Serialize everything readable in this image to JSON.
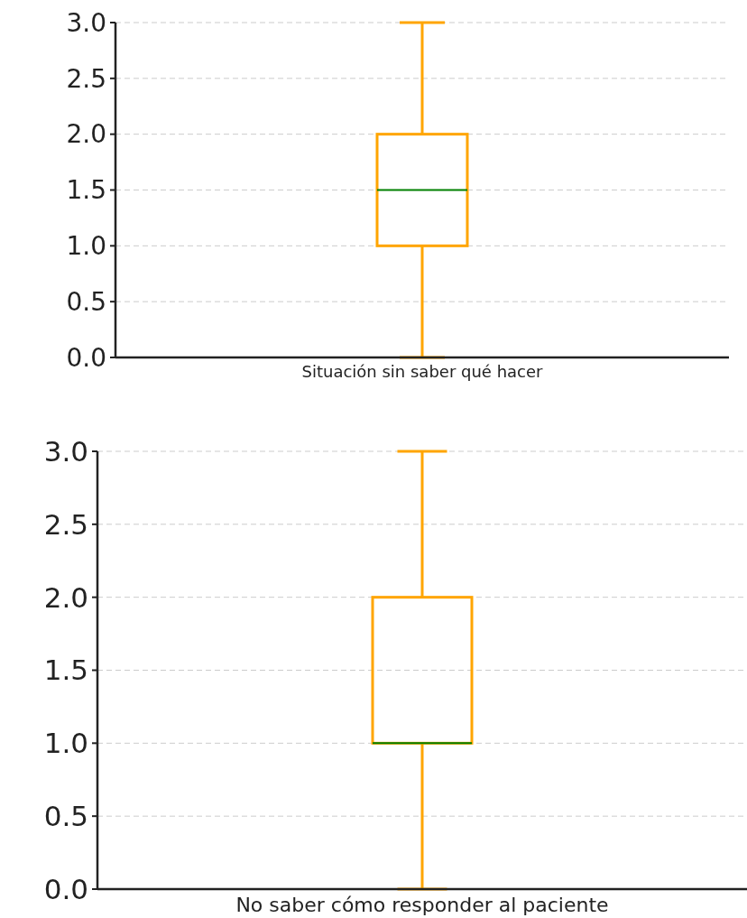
{
  "chart_data": [
    {
      "type": "box",
      "categories": [
        "Situación sin saber qué hacer"
      ],
      "color": "#ffa500",
      "boxes": [
        {
          "low": 0,
          "q1": 1,
          "median": 1.5,
          "q3": 2,
          "high": 3
        }
      ],
      "ylim": [
        0,
        3
      ],
      "yticks": [
        {
          "value": 0,
          "label": "0.0"
        },
        {
          "value": 0.5,
          "label": "0.5"
        },
        {
          "value": 1,
          "label": "1.0"
        },
        {
          "value": 1.5,
          "label": "1.5"
        },
        {
          "value": 2,
          "label": "2.0"
        },
        {
          "value": 2.5,
          "label": "2.5"
        },
        {
          "value": 3,
          "label": "3.0"
        }
      ],
      "grid": "y"
    },
    {
      "type": "box",
      "categories": [
        "No saber cómo responder al paciente"
      ],
      "color": "#ffa500",
      "boxes": [
        {
          "low": 0,
          "q1": 1,
          "median": 1,
          "q3": 2,
          "high": 3
        }
      ],
      "ylim": [
        0,
        3
      ],
      "yticks": [
        {
          "value": 0,
          "label": "0.0"
        },
        {
          "value": 0.5,
          "label": "0.5"
        },
        {
          "value": 1,
          "label": "1.0"
        },
        {
          "value": 1.5,
          "label": "1.5"
        },
        {
          "value": 2,
          "label": "2.0"
        },
        {
          "value": 2.5,
          "label": "2.5"
        },
        {
          "value": 3,
          "label": "3.0"
        }
      ],
      "grid": "y"
    }
  ]
}
